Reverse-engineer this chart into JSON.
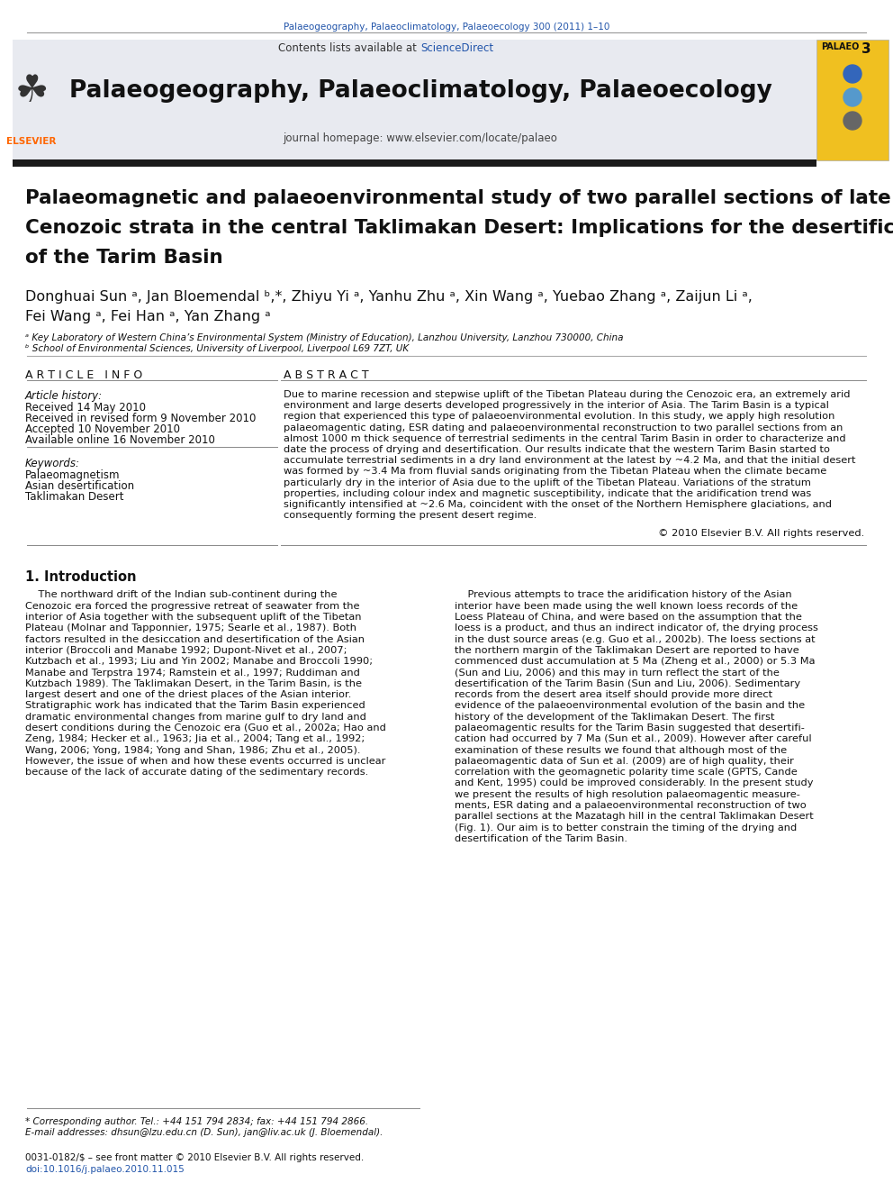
{
  "journal_cite": "Palaeogeography, Palaeoclimatology, Palaeoecology 300 (2011) 1–10",
  "journal_name": "Palaeogeography, Palaeoclimatology, Palaeoecology",
  "journal_homepage": "journal homepage: www.elsevier.com/locate/palaeo",
  "contents_line": "Contents lists available at ScienceDirect",
  "paper_title_lines": [
    "Palaeomagnetic and palaeoenvironmental study of two parallel sections of late",
    "Cenozoic strata in the central Taklimakan Desert: Implications for the desertification",
    "of the Tarim Basin"
  ],
  "authors_line1": "Donghuai Sun ᵃ, Jan Bloemendal ᵇ,*, Zhiyu Yi ᵃ, Yanhu Zhu ᵃ, Xin Wang ᵃ, Yuebao Zhang ᵃ, Zaijun Li ᵃ,",
  "authors_line2": "Fei Wang ᵃ, Fei Han ᵃ, Yan Zhang ᵃ",
  "affil_a": "ᵃ Key Laboratory of Western China’s Environmental System (Ministry of Education), Lanzhou University, Lanzhou 730000, China",
  "affil_b": "ᵇ School of Environmental Sciences, University of Liverpool, Liverpool L69 7ZT, UK",
  "article_info_header": "A R T I C L E   I N F O",
  "article_history_label": "Article history:",
  "received": "Received 14 May 2010",
  "revised": "Received in revised form 9 November 2010",
  "accepted": "Accepted 10 November 2010",
  "available": "Available online 16 November 2010",
  "keywords_label": "Keywords:",
  "keyword1": "Palaeomagnetism",
  "keyword2": "Asian desertification",
  "keyword3": "Taklimakan Desert",
  "abstract_header": "A B S T R A C T",
  "abstract_lines": [
    "Due to marine recession and stepwise uplift of the Tibetan Plateau during the Cenozoic era, an extremely arid",
    "environment and large deserts developed progressively in the interior of Asia. The Tarim Basin is a typical",
    "region that experienced this type of palaeoenvironmental evolution. In this study, we apply high resolution",
    "palaeomagentic dating, ESR dating and palaeoenvironmental reconstruction to two parallel sections from an",
    "almost 1000 m thick sequence of terrestrial sediments in the central Tarim Basin in order to characterize and",
    "date the process of drying and desertification. Our results indicate that the western Tarim Basin started to",
    "accumulate terrestrial sediments in a dry land environment at the latest by ~4.2 Ma, and that the initial desert",
    "was formed by ~3.4 Ma from fluvial sands originating from the Tibetan Plateau when the climate became",
    "particularly dry in the interior of Asia due to the uplift of the Tibetan Plateau. Variations of the stratum",
    "properties, including colour index and magnetic susceptibility, indicate that the aridification trend was",
    "significantly intensified at ~2.6 Ma, coincident with the onset of the Northern Hemisphere glaciations, and",
    "consequently forming the present desert regime."
  ],
  "copyright": "© 2010 Elsevier B.V. All rights reserved.",
  "section1_title": "1. Introduction",
  "intro_left_lines": [
    "    The northward drift of the Indian sub-continent during the",
    "Cenozoic era forced the progressive retreat of seawater from the",
    "interior of Asia together with the subsequent uplift of the Tibetan",
    "Plateau (Molnar and Tapponnier, 1975; Searle et al., 1987). Both",
    "factors resulted in the desiccation and desertification of the Asian",
    "interior (Broccoli and Manabe 1992; Dupont-Nivet et al., 2007;",
    "Kutzbach et al., 1993; Liu and Yin 2002; Manabe and Broccoli 1990;",
    "Manabe and Terpstra 1974; Ramstein et al., 1997; Ruddiman and",
    "Kutzbach 1989). The Taklimakan Desert, in the Tarim Basin, is the",
    "largest desert and one of the driest places of the Asian interior.",
    "Stratigraphic work has indicated that the Tarim Basin experienced",
    "dramatic environmental changes from marine gulf to dry land and",
    "desert conditions during the Cenozoic era (Guo et al., 2002a; Hao and",
    "Zeng, 1984; Hecker et al., 1963; Jia et al., 2004; Tang et al., 1992;",
    "Wang, 2006; Yong, 1984; Yong and Shan, 1986; Zhu et al., 2005).",
    "However, the issue of when and how these events occurred is unclear",
    "because of the lack of accurate dating of the sedimentary records."
  ],
  "intro_right_lines": [
    "    Previous attempts to trace the aridification history of the Asian",
    "interior have been made using the well known loess records of the",
    "Loess Plateau of China, and were based on the assumption that the",
    "loess is a product, and thus an indirect indicator of, the drying process",
    "in the dust source areas (e.g. Guo et al., 2002b). The loess sections at",
    "the northern margin of the Taklimakan Desert are reported to have",
    "commenced dust accumulation at 5 Ma (Zheng et al., 2000) or 5.3 Ma",
    "(Sun and Liu, 2006) and this may in turn reflect the start of the",
    "desertification of the Tarim Basin (Sun and Liu, 2006). Sedimentary",
    "records from the desert area itself should provide more direct",
    "evidence of the palaeoenvironmental evolution of the basin and the",
    "history of the development of the Taklimakan Desert. The first",
    "palaeomagentic results for the Tarim Basin suggested that desertifi-",
    "cation had occurred by 7 Ma (Sun et al., 2009). However after careful",
    "examination of these results we found that although most of the",
    "palaeomagentic data of Sun et al. (2009) are of high quality, their",
    "correlation with the geomagnetic polarity time scale (GPTS, Cande",
    "and Kent, 1995) could be improved considerably. In the present study",
    "we present the results of high resolution palaeomagentic measure-",
    "ments, ESR dating and a palaeoenvironmental reconstruction of two",
    "parallel sections at the Mazatagh hill in the central Taklimakan Desert",
    "(Fig. 1). Our aim is to better constrain the timing of the drying and",
    "desertification of the Tarim Basin."
  ],
  "footer_line1": "* Corresponding author. Tel.: +44 151 794 2834; fax: +44 151 794 2866.",
  "footer_line2": "E-mail addresses: dhsun@lzu.edu.cn (D. Sun), jan@liv.ac.uk (J. Bloemendal).",
  "footer_issn": "0031-0182/$ – see front matter © 2010 Elsevier B.V. All rights reserved.",
  "footer_doi": "doi:10.1016/j.palaeo.2010.11.015",
  "bg_color": "#ffffff",
  "header_bg": "#e8eaf0",
  "journal_cite_color": "#2255aa",
  "sciencedirect_color": "#2255aa",
  "link_color": "#2255aa",
  "palaeo_bg": "#f0c020",
  "black_bar_color": "#1a1a1a"
}
